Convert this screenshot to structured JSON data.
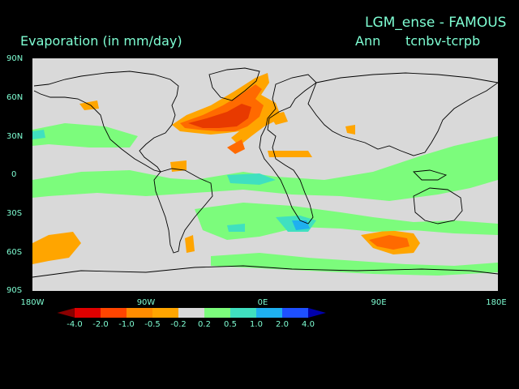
{
  "header": {
    "title": "LGM_ense - FAMOUS",
    "variable": "Evaporation (in mm/day)",
    "season": "Ann",
    "experiment": "tcnbv-tcrpb"
  },
  "axes": {
    "y_labels": [
      "90N",
      "60N",
      "30N",
      "0",
      "30S",
      "60S",
      "90S"
    ],
    "x_labels": [
      "180W",
      "90W",
      "0E",
      "90E",
      "180E"
    ]
  },
  "colorbar": {
    "labels": [
      "-4.0",
      "-2.0",
      "-1.0",
      "-0.5",
      "-0.2",
      "0.2",
      "0.5",
      "1.0",
      "2.0",
      "4.0"
    ],
    "colors": [
      "#8b0000",
      "#e00000",
      "#ff4500",
      "#ff8c00",
      "#ffa500",
      "#d9d9d9",
      "#7cfc7c",
      "#40e0c0",
      "#1fb0f0",
      "#1e50ff",
      "#0000aa"
    ]
  },
  "palette": {
    "background": "#000000",
    "ocean_neutral": "#d9d9d9",
    "text": "#7fffd4",
    "strong_negative": "#e83a00",
    "negative": "#ff6a00",
    "weak_negative": "#ffa500",
    "weak_positive": "#7cfc7c",
    "positive": "#40e0c0",
    "strong_positive": "#1fb0f0"
  }
}
